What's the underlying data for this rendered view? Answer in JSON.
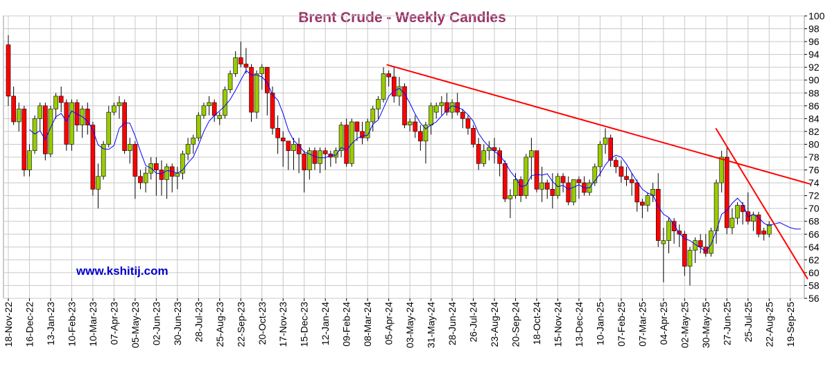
{
  "chart_data": {
    "type": "candlestick",
    "title": "Brent Crude - Weekly Candles",
    "watermark": "www.kshitij.com",
    "categories": [
      "18-Nov-22",
      null,
      null,
      null,
      "16-Dec-22",
      null,
      null,
      null,
      "13-Jan-23",
      null,
      null,
      null,
      "10-Feb-23",
      null,
      null,
      null,
      "10-Mar-23",
      null,
      null,
      null,
      "07-Apr-23",
      null,
      null,
      null,
      "05-May-23",
      null,
      null,
      null,
      "02-Jun-23",
      null,
      null,
      null,
      "30-Jun-23",
      null,
      null,
      null,
      "28-Jul-23",
      null,
      null,
      null,
      "25-Aug-23",
      null,
      null,
      null,
      "22-Sep-23",
      null,
      null,
      null,
      "20-Oct-23",
      null,
      null,
      null,
      "17-Nov-23",
      null,
      null,
      null,
      "15-Dec-23",
      null,
      null,
      null,
      "12-Jan-24",
      null,
      null,
      null,
      "09-Feb-24",
      null,
      null,
      null,
      "08-Mar-24",
      null,
      null,
      null,
      "05-Apr-24",
      null,
      null,
      null,
      "03-May-24",
      null,
      null,
      null,
      "31-May-24",
      null,
      null,
      null,
      "28-Jun-24",
      null,
      null,
      null,
      "26-Jul-24",
      null,
      null,
      null,
      "23-Aug-24",
      null,
      null,
      null,
      "20-Sep-24",
      null,
      null,
      null,
      "18-Oct-24",
      null,
      null,
      null,
      "15-Nov-24",
      null,
      null,
      null,
      "13-Dec-24",
      null,
      null,
      null,
      "10-Jan-25",
      null,
      null,
      null,
      "07-Feb-25",
      null,
      null,
      null,
      "07-Mar-25",
      null,
      null,
      null,
      "04-Apr-25",
      null,
      null,
      null,
      "02-May-25",
      null,
      null,
      null,
      "30-May-25",
      null,
      null,
      null,
      "27-Jun-25",
      null,
      null,
      null,
      "25-Jul-25",
      null,
      null,
      null,
      "22-Aug-25",
      null,
      null,
      null,
      "19-Sep-25",
      null,
      null
    ],
    "open": [
      95.5,
      87.5,
      83.5,
      85.5,
      76,
      79,
      84,
      86,
      78.5,
      85.5,
      87.5,
      86.5,
      80,
      86.5,
      83,
      85.5,
      83,
      73,
      75,
      80,
      85,
      86,
      86.5,
      79,
      80,
      75,
      74,
      75.5,
      77,
      76,
      74.5,
      76.5,
      75,
      75.5,
      78.5,
      80,
      81,
      84.5,
      86,
      86.5,
      84,
      84.5,
      88.5,
      91,
      93.5,
      92.5,
      92,
      85,
      91,
      92,
      88,
      82.5,
      81,
      80.5,
      79,
      80,
      78.5,
      76,
      79,
      77,
      79,
      78.5,
      78,
      79,
      83,
      77,
      83.5,
      82,
      81,
      83.5,
      85.5,
      87,
      91,
      90.5,
      87.5,
      89,
      83,
      83.5,
      82,
      80.5,
      83,
      85,
      86,
      86.5,
      85,
      86.5,
      85,
      84,
      82.5,
      80,
      77,
      79,
      79.5,
      79,
      77,
      71.5,
      72,
      74.5,
      72,
      78,
      79,
      73,
      74,
      73,
      72,
      75,
      74,
      71,
      74.5,
      74,
      72.5,
      74,
      76.5,
      80,
      81,
      77.5,
      76.5,
      75,
      74.5,
      74,
      71,
      70.5,
      72,
      73,
      64.5,
      65,
      68,
      66.5,
      66,
      61,
      63.5,
      65,
      64,
      63,
      66.5,
      74,
      78,
      67,
      68.5,
      70.5,
      69.5,
      68,
      69,
      66.5,
      66,
      null,
      null,
      null,
      null,
      null,
      null
    ],
    "high": [
      97,
      89,
      86.5,
      86,
      80,
      84.5,
      86.5,
      86.5,
      86,
      88,
      89,
      87,
      87,
      87,
      86,
      86.5,
      83.5,
      77,
      80.5,
      86,
      86.5,
      87.5,
      87,
      81,
      80.5,
      76,
      76.5,
      78,
      78,
      77.5,
      77,
      77,
      76.5,
      79,
      81,
      81.5,
      85,
      86.5,
      87.5,
      87,
      85,
      89,
      91.5,
      94.5,
      96,
      95,
      92.5,
      91.5,
      92.5,
      92,
      89,
      84.5,
      82,
      80.5,
      81,
      81,
      79,
      79.5,
      79.5,
      79.5,
      79.5,
      79,
      79.5,
      83.5,
      84,
      84,
      83.5,
      83.5,
      84,
      86,
      87.5,
      92,
      91.5,
      92,
      90.5,
      89.5,
      84,
      84.5,
      83,
      83.5,
      86.5,
      86.5,
      87.5,
      88,
      87,
      88,
      85.5,
      84.5,
      83,
      81,
      80,
      80.5,
      81,
      79.5,
      77.5,
      73,
      75.5,
      75,
      78.5,
      81,
      79,
      76.5,
      74.5,
      75.5,
      75.5,
      75.5,
      75,
      74.5,
      75,
      75,
      74.5,
      77,
      80.5,
      82.5,
      81.5,
      78,
      77.5,
      76.5,
      75.5,
      74.5,
      71.5,
      72.5,
      74,
      75.5,
      67,
      68.5,
      68.5,
      67.5,
      66.5,
      64,
      65.5,
      66,
      66,
      67,
      74.5,
      79,
      79.5,
      70,
      71,
      71,
      72.5,
      69.5,
      69.5,
      67,
      68,
      null,
      null,
      null,
      null,
      null,
      null
    ],
    "low": [
      86,
      83,
      82,
      75,
      75,
      78.5,
      82,
      77.5,
      78,
      84,
      85,
      79,
      79,
      82,
      81,
      81.5,
      72,
      70,
      74.5,
      79.5,
      84.5,
      84,
      78.5,
      77,
      71.5,
      73,
      72.5,
      74.5,
      72,
      72,
      71.5,
      72.5,
      73,
      74.5,
      77.5,
      78.5,
      80.5,
      84,
      84.5,
      83.5,
      83,
      84,
      88,
      90.5,
      92,
      91,
      83.5,
      84,
      88.5,
      84.5,
      81.5,
      78.5,
      76.5,
      76,
      76,
      75.5,
      72.5,
      74.5,
      76,
      75.5,
      76,
      76.5,
      77,
      78,
      76.5,
      76.5,
      80.5,
      80,
      80.5,
      82,
      84,
      86.5,
      89,
      86.5,
      86,
      82.5,
      82,
      81,
      79,
      77,
      81.5,
      84,
      84.5,
      84.5,
      84,
      84.5,
      82.5,
      81.5,
      79.5,
      76,
      76.5,
      77.5,
      77,
      75,
      71,
      68.5,
      71.5,
      71,
      71.5,
      74.5,
      72.5,
      71,
      71.5,
      70,
      71.5,
      72.5,
      70.5,
      70.5,
      71.5,
      72,
      72,
      73.5,
      75,
      78.5,
      76.5,
      75.5,
      74,
      73.5,
      72,
      69.5,
      68.5,
      69.5,
      71,
      64,
      58.5,
      63,
      64.5,
      64,
      59.5,
      58,
      61.5,
      63,
      62.5,
      62.5,
      64.5,
      72.5,
      66,
      66,
      67.5,
      67.5,
      67.5,
      66.5,
      65.5,
      65,
      65.5,
      null,
      null,
      null,
      null,
      null,
      null
    ],
    "close": [
      87.5,
      83.5,
      85.5,
      76,
      79,
      84,
      86,
      78.5,
      85.5,
      87.5,
      86.5,
      80,
      86.5,
      83,
      85.5,
      83,
      73,
      75,
      80,
      85,
      86,
      86.5,
      79,
      80,
      75,
      74,
      75.5,
      77,
      76,
      74.5,
      76.5,
      75,
      75.5,
      78.5,
      80,
      81,
      84.5,
      86,
      86.5,
      84.5,
      84.5,
      88.5,
      91,
      93.5,
      92.5,
      92,
      85,
      91,
      92,
      88,
      82.5,
      81,
      80.5,
      79,
      80,
      78.5,
      76,
      79,
      77,
      79,
      78.5,
      78,
      79,
      83,
      77,
      83.5,
      82,
      81,
      83.5,
      85.5,
      87,
      91,
      90.5,
      87.5,
      89,
      83,
      83.5,
      82,
      80.5,
      83,
      86,
      86,
      86.5,
      85,
      86.5,
      85,
      84,
      82.5,
      80,
      77,
      79,
      79.5,
      79,
      77,
      71.5,
      72,
      74.5,
      72,
      78,
      79,
      73,
      74,
      73,
      72,
      75,
      74,
      71,
      74.5,
      74,
      72.5,
      74,
      76.5,
      80,
      81,
      77.5,
      76.5,
      75,
      74.5,
      74,
      71,
      70.5,
      72,
      73,
      65,
      65,
      68,
      66.5,
      66,
      61,
      63.5,
      65,
      64,
      63,
      66.5,
      74,
      78,
      67,
      68.5,
      70.5,
      69.5,
      68,
      69,
      66,
      66,
      67.5,
      null,
      null,
      null,
      null,
      null,
      null
    ],
    "up_color": "#99cc00",
    "down_color": "#ff0000",
    "moving_average": {
      "color": "#0000ff",
      "values": [
        null,
        null,
        null,
        null,
        82.3,
        81.6,
        82.1,
        80.7,
        82.6,
        84.3,
        84.8,
        83.6,
        85.2,
        84.7,
        84.3,
        83.6,
        82.2,
        79.9,
        79.3,
        79.2,
        79.8,
        82.5,
        83.3,
        83.3,
        81.3,
        78.9,
        76.7,
        76.3,
        75.5,
        75.4,
        75.9,
        75.8,
        75.5,
        76,
        77.1,
        78,
        79.9,
        82,
        83.6,
        84.5,
        85.2,
        86,
        87,
        88.4,
        90,
        91.5,
        90.8,
        90.8,
        90.5,
        89.6,
        87.7,
        86.9,
        84.8,
        82.2,
        80.6,
        79.8,
        78.8,
        78.5,
        78.1,
        77.9,
        77.9,
        78.3,
        78.3,
        79.5,
        79.1,
        80.1,
        80.9,
        81.3,
        81.4,
        83.1,
        83.8,
        85.6,
        87.5,
        88.3,
        88.7,
        87.9,
        86.4,
        84.7,
        83.3,
        82.4,
        83,
        83.5,
        84.4,
        85.3,
        86,
        85.8,
        85.4,
        84.6,
        83.6,
        81.7,
        80.5,
        79.6,
        78.9,
        78.3,
        77.2,
        75.8,
        74.8,
        73.4,
        73.6,
        75.1,
        75.3,
        75.2,
        75.4,
        74.2,
        73.4,
        73.6,
        73,
        73.3,
        73.7,
        73.2,
        73.2,
        74.3,
        75.4,
        76.8,
        77.8,
        78.3,
        78,
        76.9,
        75.5,
        74.2,
        73,
        72.4,
        72.1,
        70.3,
        69.1,
        68.6,
        67.5,
        66.1,
        65.3,
        65,
        64.4,
        63.9,
        63.3,
        64.4,
        66.5,
        69.1,
        69.7,
        70.8,
        71.6,
        70.7,
        68.7,
        69.1,
        68.6,
        67.7,
        67.3,
        67.6,
        67.8,
        67.4,
        67,
        66.8,
        66.8
      ]
    },
    "trendlines": [
      {
        "color": "#ff0000",
        "x": [
          71.6,
          151.8
        ],
        "values": [
          92.4,
          73.8
        ]
      },
      {
        "color": "#ff0000",
        "x": [
          133.9,
          151.3
        ],
        "values": [
          82.5,
          59
        ]
      }
    ],
    "ylim": [
      56,
      100
    ],
    "yticks": [
      56,
      58,
      60,
      62,
      64,
      66,
      68,
      70,
      72,
      74,
      76,
      78,
      80,
      82,
      84,
      86,
      88,
      90,
      92,
      94,
      96,
      98,
      100
    ],
    "grid": true
  }
}
